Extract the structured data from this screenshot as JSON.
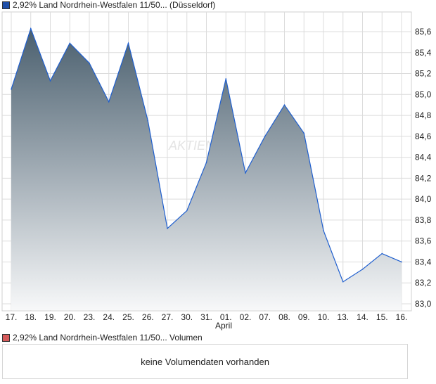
{
  "price_legend": {
    "label": "2,92% Land Nordrhein-Westfalen 11/50... (Düsseldorf)",
    "color": "#1f4fa8"
  },
  "volume_legend": {
    "label": "2,92% Land Nordrhein-Westfalen 11/50... Volumen",
    "color": "#d65a5a"
  },
  "volume_message": "keine Volumendaten vorhanden",
  "watermark": "AKTIEN",
  "chart_data": {
    "type": "area",
    "title": "2,92% Land Nordrhein-Westfalen 11/50... (Düsseldorf)",
    "xlabel": "April",
    "ylabel": "",
    "categories": [
      "17.",
      "18.",
      "19.",
      "20.",
      "23.",
      "24.",
      "25.",
      "26.",
      "27.",
      "30.",
      "31.",
      "01.",
      "02.",
      "07.",
      "08.",
      "09.",
      "10.",
      "13.",
      "14.",
      "15.",
      "16."
    ],
    "values": [
      85.05,
      85.63,
      85.13,
      85.49,
      85.3,
      84.93,
      85.49,
      84.75,
      83.72,
      83.89,
      84.35,
      85.15,
      84.25,
      84.6,
      84.9,
      84.63,
      83.7,
      83.21,
      83.33,
      83.48,
      83.4
    ],
    "yticks": [
      "83,0",
      "83,2",
      "83,4",
      "83,6",
      "83,8",
      "84,0",
      "84,2",
      "84,4",
      "84,6",
      "84,8",
      "85,0",
      "85,2",
      "85,4",
      "85,6"
    ],
    "ylim": [
      82.93,
      85.89
    ],
    "grid": true,
    "legend_position": "top-left",
    "line_color": "#1f5fcf"
  }
}
